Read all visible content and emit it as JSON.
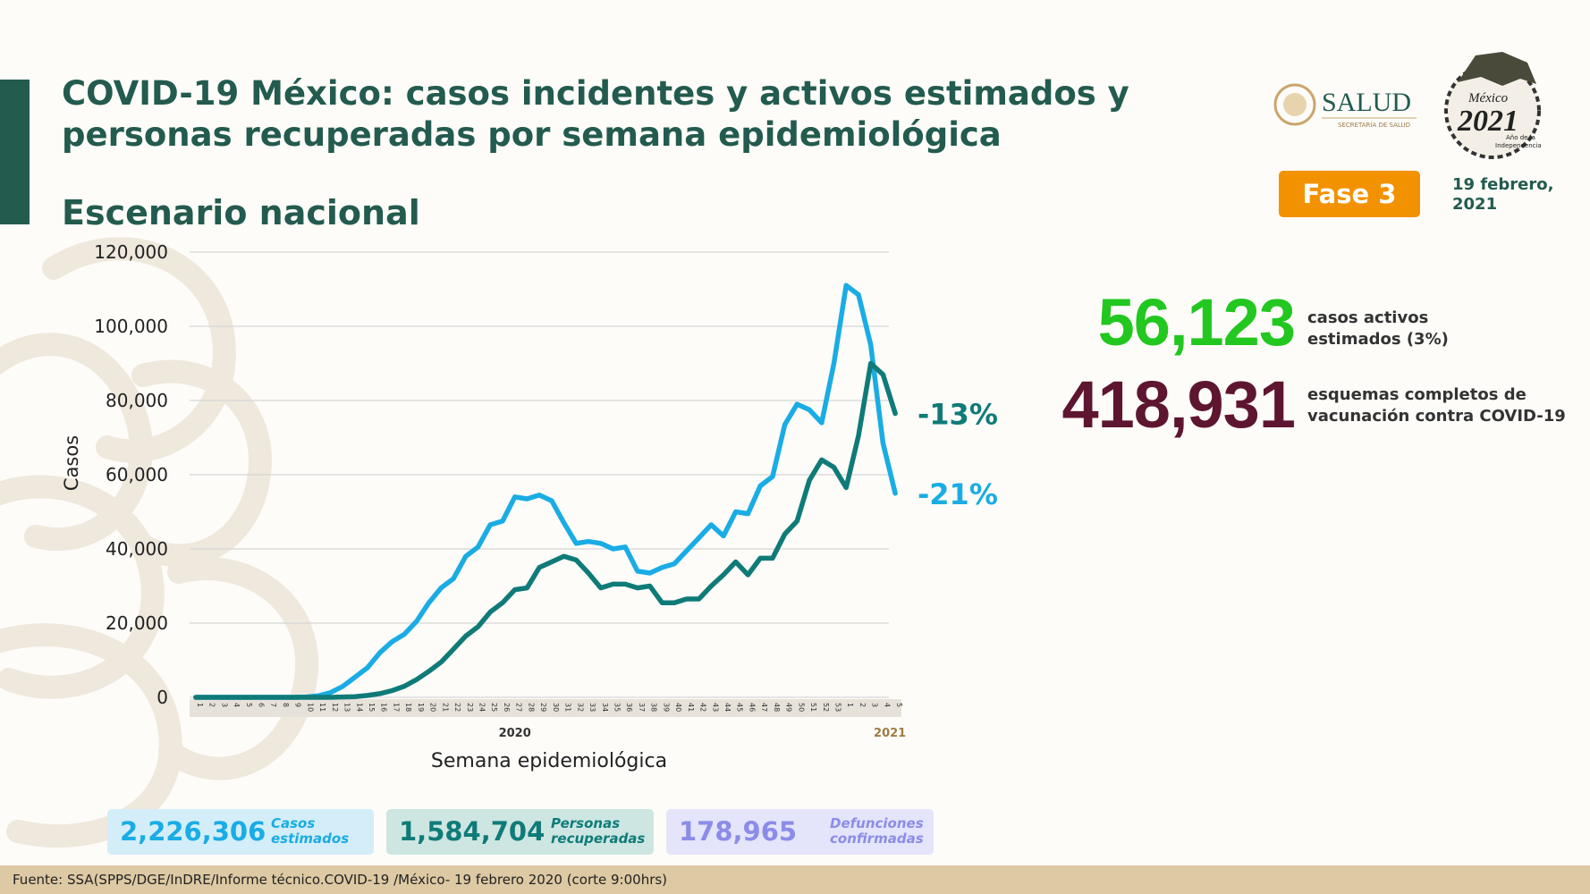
{
  "header": {
    "title_line1": "COVID-19 México: casos incidentes y activos estimados y",
    "title_line2": "personas recuperadas por semana epidemiológica",
    "subtitle": "Escenario nacional",
    "logo_salud_text": "SALUD",
    "logo_salud_sub": "SECRETARÍA DE SALUD",
    "logo_2021_text": "2021",
    "logo_2021_mexico": "México",
    "logo_2021_sub1": "Año de la",
    "logo_2021_sub2": "Independencia",
    "phase_label": "Fase 3",
    "date_line1": "19 febrero,",
    "date_line2": "2021"
  },
  "stats": {
    "active_value": "56,123",
    "active_label_line1": "casos activos",
    "active_label_line2": "estimados (3%)",
    "vaccine_value": "418,931",
    "vaccine_label_line1": "esquemas completos de",
    "vaccine_label_line2": "vacunación contra COVID-19"
  },
  "summary": {
    "cases_value": "2,226,306",
    "cases_label_line1": "Casos",
    "cases_label_line2": "estimados",
    "recovered_value": "1,584,704",
    "recovered_label_line1": "Personas",
    "recovered_label_line2": "recuperadas",
    "deaths_value": "178,965",
    "deaths_label_line1": "Defunciones",
    "deaths_label_line2": "confirmadas"
  },
  "footer": {
    "source": "Fuente: SSA(SPPS/DGE/InDRE/Informe técnico.COVID-19 /México- 19 febrero 2020 (corte 9:00hrs)"
  },
  "colors": {
    "brand": "#235b4e",
    "cases_line": "#1aace4",
    "recovered_line": "#0f7b78",
    "active_green": "#22c71f",
    "vaccine_maroon": "#5e1530",
    "phase_orange": "#f39200"
  },
  "chart_data": {
    "type": "line",
    "title": "",
    "xlabel": "Semana epidemiológica",
    "ylabel": "Casos",
    "ylim": [
      0,
      120000
    ],
    "yticks": [
      0,
      20000,
      40000,
      60000,
      80000,
      100000,
      120000
    ],
    "ytick_labels": [
      "0",
      "20,000",
      "40,000",
      "60,000",
      "80,000",
      "100,000",
      "120,000"
    ],
    "grid": true,
    "categories": [
      "1",
      "2",
      "3",
      "4",
      "5",
      "6",
      "7",
      "8",
      "9",
      "10",
      "11",
      "12",
      "13",
      "14",
      "15",
      "16",
      "17",
      "18",
      "19",
      "20",
      "21",
      "22",
      "23",
      "24",
      "25",
      "26",
      "27",
      "28",
      "29",
      "30",
      "31",
      "32",
      "33",
      "34",
      "35",
      "36",
      "37",
      "38",
      "39",
      "40",
      "41",
      "42",
      "43",
      "44",
      "45",
      "46",
      "47",
      "48",
      "49",
      "50",
      "51",
      "52",
      "53",
      "1",
      "2",
      "3",
      "4",
      "5"
    ],
    "year_groups": [
      {
        "label": "2020",
        "start": 0,
        "end": 52
      },
      {
        "label": "2021",
        "start": 53,
        "end": 57
      }
    ],
    "series": [
      {
        "name": "Casos estimados",
        "color": "#1aace4",
        "end_label": "-21%",
        "values": [
          0,
          0,
          0,
          0,
          0,
          0,
          0,
          0,
          0,
          100,
          400,
          1300,
          3000,
          5500,
          8000,
          12000,
          15000,
          17000,
          20500,
          25500,
          29500,
          32000,
          38000,
          40500,
          46500,
          47500,
          54000,
          53500,
          54500,
          53000,
          47000,
          41500,
          42000,
          41500,
          40000,
          40500,
          34000,
          33500,
          35000,
          36000,
          39500,
          43000,
          46500,
          43500,
          50000,
          49500,
          57000,
          59500,
          73500,
          79000,
          77500,
          74000,
          90000,
          111000,
          108500,
          95000,
          68500,
          55000
        ]
      },
      {
        "name": "Personas recuperadas",
        "color": "#0f7b78",
        "end_label": "-13%",
        "values": [
          0,
          0,
          0,
          0,
          0,
          0,
          0,
          0,
          0,
          0,
          0,
          0,
          100,
          200,
          500,
          1000,
          1800,
          3000,
          4800,
          7000,
          9500,
          13000,
          16500,
          19000,
          23000,
          25500,
          29000,
          29500,
          35000,
          36500,
          38000,
          37000,
          33500,
          29500,
          30500,
          30500,
          29500,
          30000,
          25500,
          25500,
          26500,
          26500,
          30000,
          33000,
          36500,
          33000,
          37500,
          37500,
          44000,
          47500,
          58500,
          64000,
          62000,
          56500,
          70500,
          90000,
          87000,
          76500
        ]
      }
    ]
  }
}
